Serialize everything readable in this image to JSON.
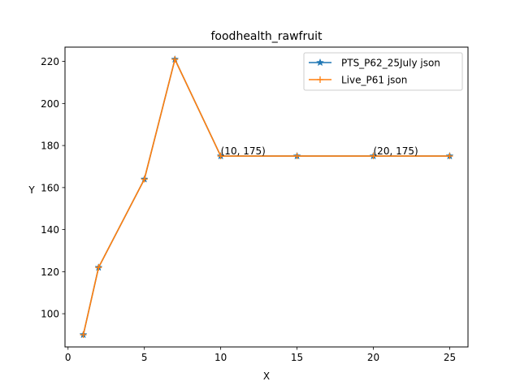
{
  "chart_data": {
    "type": "line",
    "title": "foodhealth_rawfruit",
    "xlabel": "X",
    "ylabel": "Y",
    "xlim": [
      -0.2,
      26.2
    ],
    "ylim": [
      84.2,
      226.8
    ],
    "xticks": [
      0,
      5,
      10,
      15,
      20,
      25
    ],
    "yticks": [
      100,
      120,
      140,
      160,
      180,
      200,
      220
    ],
    "grid": false,
    "legend_position": "top-right",
    "series": [
      {
        "name": "PTS_P62_25July json",
        "color": "#1f77b4",
        "marker": "star",
        "x": [
          1,
          2,
          5,
          7,
          10,
          15,
          20,
          25
        ],
        "y": [
          90,
          122,
          164,
          221,
          175,
          175,
          175,
          175
        ]
      },
      {
        "name": "Live_P61 json",
        "color": "#ff7f0e",
        "marker": "plus",
        "x": [
          1,
          2,
          5,
          7,
          10,
          15,
          20,
          25
        ],
        "y": [
          90,
          122,
          164,
          221,
          175,
          175,
          175,
          175
        ]
      }
    ],
    "annotations": [
      {
        "x": 10,
        "y": 175,
        "text": "(10, 175)"
      },
      {
        "x": 20,
        "y": 175,
        "text": "(20, 175)"
      }
    ]
  }
}
